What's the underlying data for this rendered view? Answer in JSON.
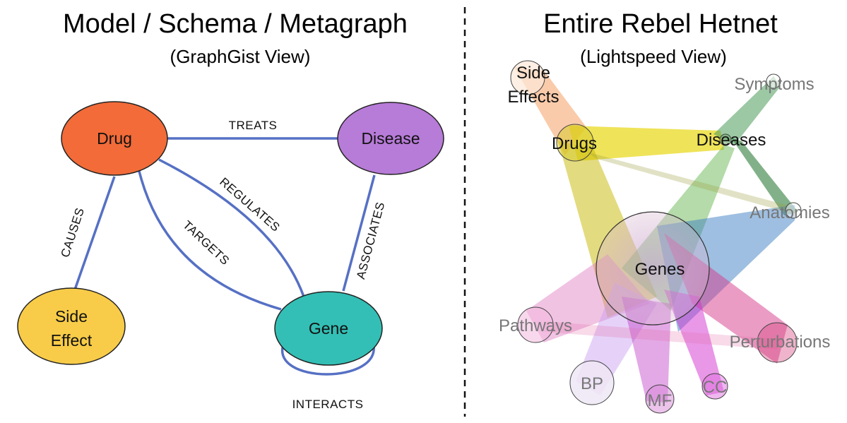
{
  "left": {
    "title": "Model / Schema / Metagraph",
    "subtitle": "(GraphGist View)",
    "nodes": {
      "drug": {
        "label": "Drug",
        "color": "#f26b38"
      },
      "disease": {
        "label": "Disease",
        "color": "#b77bd8"
      },
      "side_effect": {
        "line1": "Side",
        "line2": "Effect",
        "color": "#f8cc48"
      },
      "gene": {
        "label": "Gene",
        "color": "#33bfb5"
      }
    },
    "edges": {
      "treats": "TREATS",
      "regulates": "REGULATES",
      "targets": "TARGETS",
      "causes": "CAUSES",
      "associates": "ASSOCIATES",
      "interacts": "INTERACTS"
    },
    "edge_color": "#5670c4"
  },
  "right": {
    "title": "Entire Rebel Hetnet",
    "subtitle": "(Lightspeed View)",
    "nodes": {
      "side_effects": {
        "line1": "Side",
        "line2": "Effects"
      },
      "drugs": "Drugs",
      "diseases": "Diseases",
      "symptoms": "Symptoms",
      "anatomies": "Anatomies",
      "genes": "Genes",
      "pathways": "Pathways",
      "perturbations": "Perturbations",
      "bp": "BP",
      "mf": "MF",
      "cc": "CC"
    }
  }
}
